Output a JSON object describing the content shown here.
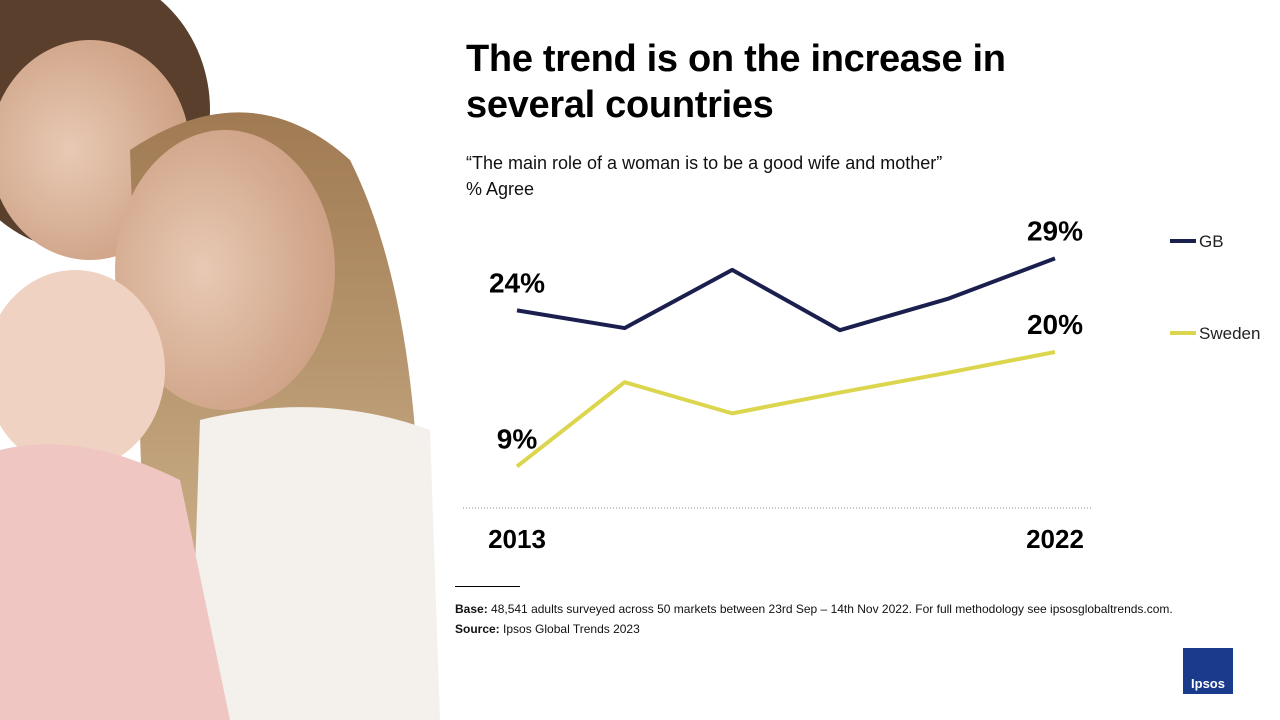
{
  "chart_data": {
    "type": "line",
    "title": "The trend is on the increase in several countries",
    "subtitle": "“The main role of a woman is to be a good wife and mother”",
    "unit_label": "% Agree",
    "categories": [
      "2013",
      null,
      null,
      null,
      null,
      "2022"
    ],
    "ylim": [
      5,
      30
    ],
    "series": [
      {
        "name": "GB",
        "color": "#1a1f4e",
        "values": [
          24,
          22.3,
          27.9,
          22.1,
          25.1,
          29
        ],
        "value_labels": [
          "24%",
          null,
          null,
          null,
          null,
          "29%"
        ]
      },
      {
        "name": "Sweden",
        "color": "#dcd64f",
        "values": [
          9,
          17.1,
          14.1,
          16.1,
          18,
          20
        ],
        "value_labels": [
          "9%",
          null,
          null,
          null,
          null,
          "20%"
        ]
      }
    ]
  },
  "footer": {
    "base_label": "Base:",
    "base_text": "48,541 adults surveyed across 50 markets between 23rd Sep – 14th Nov 2022.  For full methodology see ipsosglobaltrends.com.",
    "source_label": "Source:",
    "source_text": "Ipsos Global Trends 2023",
    "logo": "Ipsos"
  }
}
